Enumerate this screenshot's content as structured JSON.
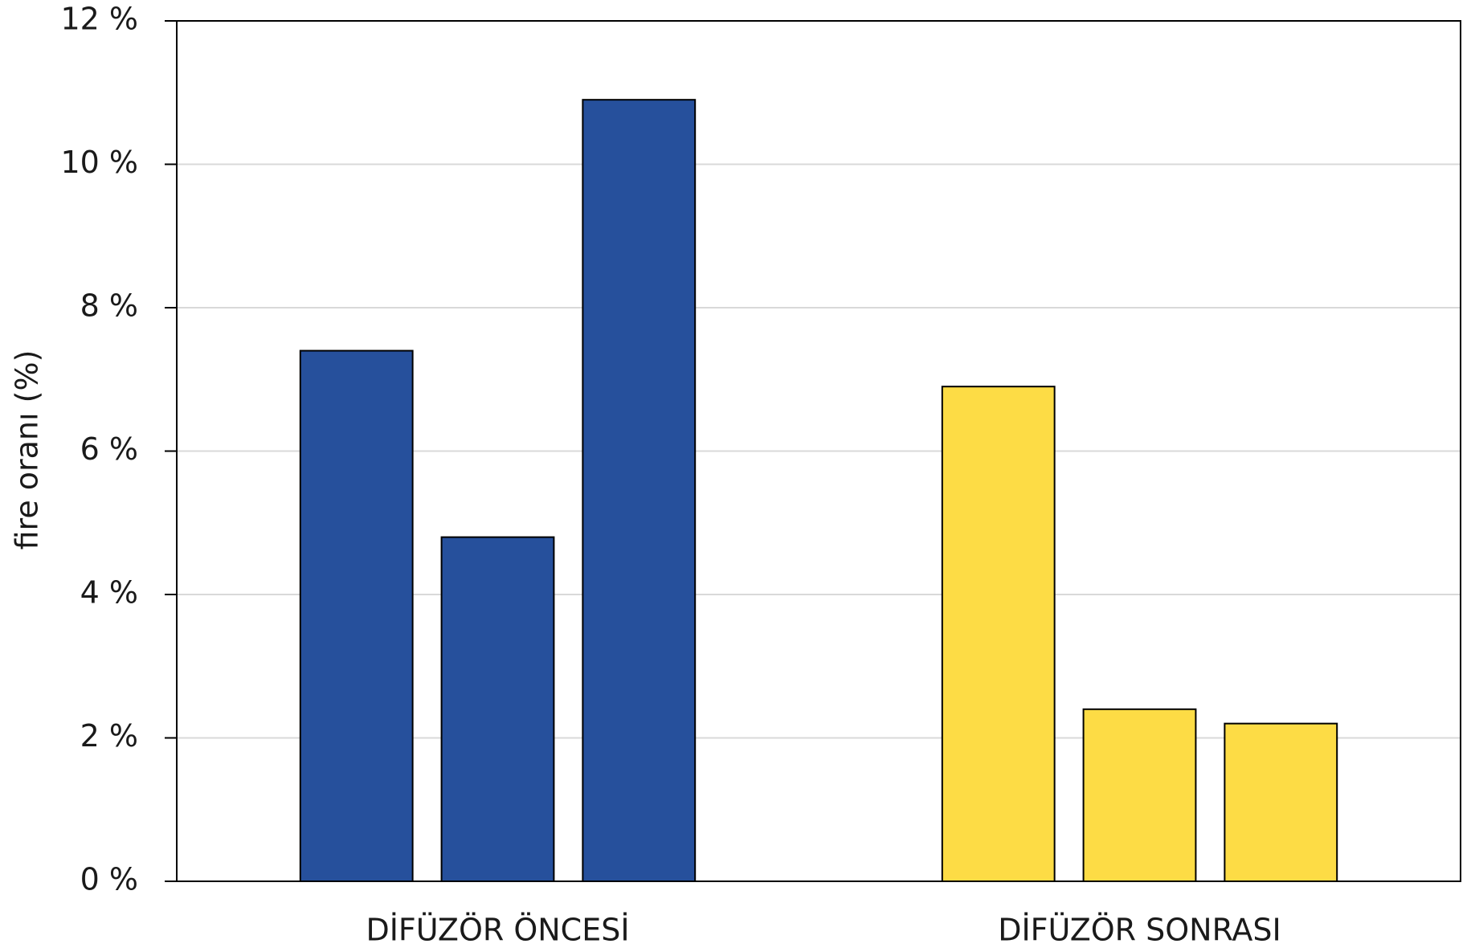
{
  "chart_data": {
    "type": "grouped-bar",
    "ylabel": "fire oranı (%)",
    "categories": [
      "DİFÜZÖR ÖNCESİ",
      "DİFÜZÖR SONRASI"
    ],
    "values": [
      [
        7.4,
        4.8,
        10.9
      ],
      [
        6.9,
        2.4,
        2.2
      ]
    ],
    "colors": [
      "#26509c",
      "#fddc45"
    ],
    "ylim": [
      0,
      12
    ],
    "yticks": [
      {
        "value": 0,
        "label": "0 %"
      },
      {
        "value": 2,
        "label": "2 %"
      },
      {
        "value": 4,
        "label": "4 %"
      },
      {
        "value": 6,
        "label": "6 %"
      },
      {
        "value": 8,
        "label": "8 %"
      },
      {
        "value": 10,
        "label": "10 %"
      },
      {
        "value": 12,
        "label": "12 %"
      }
    ],
    "grid": true
  }
}
